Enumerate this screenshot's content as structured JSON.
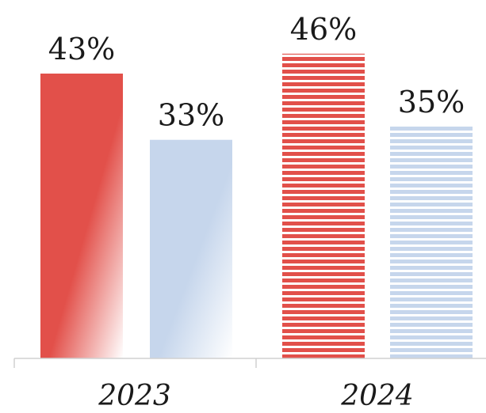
{
  "chart_data": {
    "type": "bar",
    "title": "",
    "xlabel": "",
    "ylabel": "",
    "categories": [
      "2023",
      "2024"
    ],
    "series": [
      {
        "values": [
          43,
          46
        ],
        "labels": [
          "43%",
          "46%"
        ],
        "color": "#e2504a"
      },
      {
        "values": [
          33,
          35
        ],
        "labels": [
          "33%",
          "35%"
        ],
        "color": "#c6d6ec"
      }
    ],
    "ylim": [
      0,
      50
    ],
    "grid": false,
    "legend": "none",
    "styles": {
      "2023": "gradient-fade",
      "2024": "horizontal-stripes"
    }
  }
}
